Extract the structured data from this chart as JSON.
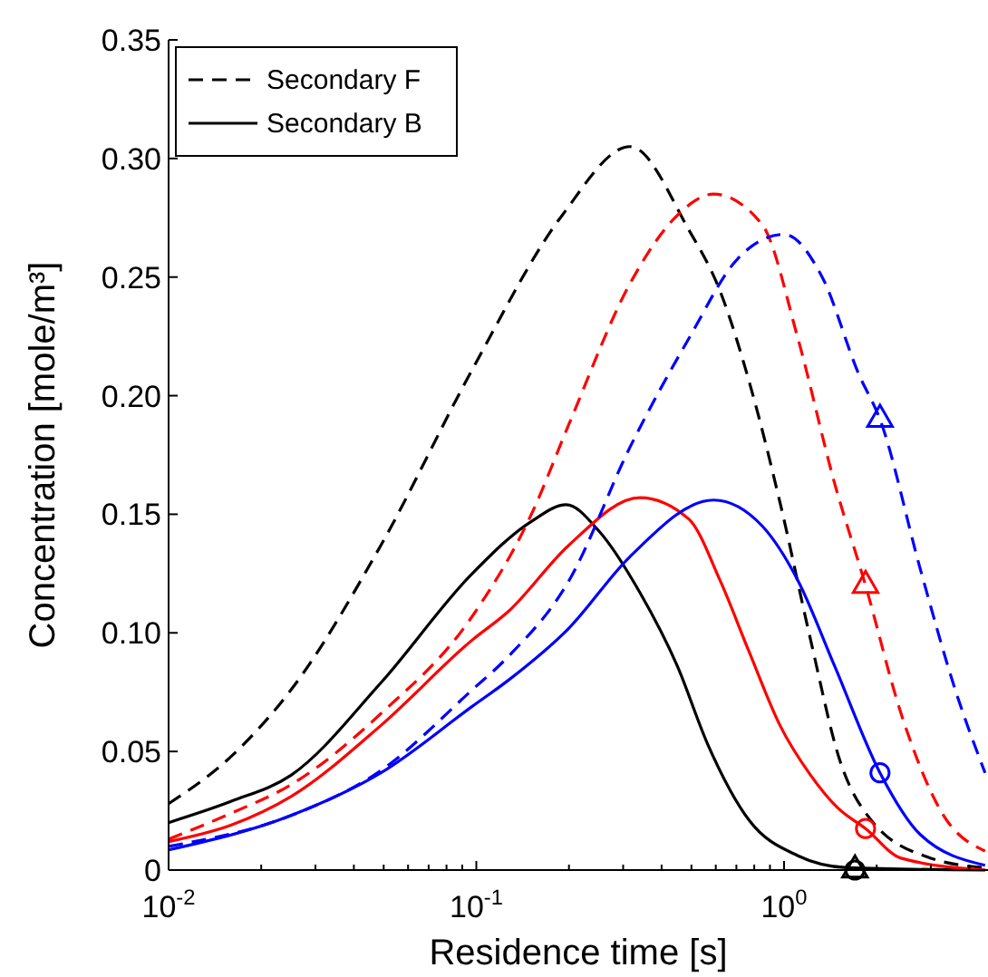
{
  "chart_data": {
    "type": "line",
    "xlabel": "Residence time [s]",
    "ylabel": "Concentration [mole/m³]",
    "log": "x",
    "xlim": [
      0.01,
      4.6
    ],
    "ylim": [
      0,
      0.35
    ],
    "xticks": [
      {
        "value": 0.01,
        "label": "10$^{-2}$"
      },
      {
        "value": 0.02,
        "label": null
      },
      {
        "value": 0.03,
        "label": null
      },
      {
        "value": 0.04,
        "label": null
      },
      {
        "value": 0.05,
        "label": null
      },
      {
        "value": 0.06,
        "label": null
      },
      {
        "value": 0.07,
        "label": null
      },
      {
        "value": 0.08,
        "label": null
      },
      {
        "value": 0.09,
        "label": null
      },
      {
        "value": 0.1,
        "label": "10$^{-1}$"
      },
      {
        "value": 0.2,
        "label": null
      },
      {
        "value": 0.3,
        "label": null
      },
      {
        "value": 0.4,
        "label": null
      },
      {
        "value": 0.5,
        "label": null
      },
      {
        "value": 0.6,
        "label": null
      },
      {
        "value": 0.7,
        "label": null
      },
      {
        "value": 0.8,
        "label": null
      },
      {
        "value": 0.9,
        "label": null
      },
      {
        "value": 1,
        "label": "10$^{0}$"
      },
      {
        "value": 2,
        "label": null
      },
      {
        "value": 3,
        "label": null
      },
      {
        "value": 4,
        "label": null
      }
    ],
    "yticks": [
      {
        "value": 0,
        "label": "0"
      },
      {
        "value": 0.05,
        "label": "0.05"
      },
      {
        "value": 0.1,
        "label": "0.10"
      },
      {
        "value": 0.15,
        "label": "0.15"
      },
      {
        "value": 0.2,
        "label": "0.20"
      },
      {
        "value": 0.25,
        "label": "0.25"
      },
      {
        "value": 0.3,
        "label": "0.30"
      },
      {
        "value": 0.35,
        "label": "0.35"
      }
    ],
    "grid": false,
    "legend": "top left",
    "series": [
      {
        "name": "Secondary F",
        "color": "#000000",
        "line_style": "dashed",
        "x": [
          0.01,
          0.016,
          0.025,
          0.049,
          0.097,
          0.19,
          0.316,
          0.49,
          0.62,
          0.77,
          0.97,
          1.22,
          1.52,
          1.92,
          3.0,
          4.5
        ],
        "values": [
          0.028,
          0.048,
          0.076,
          0.137,
          0.211,
          0.276,
          0.305,
          0.27,
          0.244,
          0.206,
          0.155,
          0.097,
          0.046,
          0.021,
          0.005,
          0.001
        ]
      },
      {
        "name": "Secondary B",
        "color": "#000000",
        "line_style": "solid",
        "x": [
          0.01,
          0.016,
          0.025,
          0.049,
          0.097,
          0.151,
          0.196,
          0.25,
          0.34,
          0.45,
          0.565,
          0.77,
          1.11,
          1.6,
          4.5
        ],
        "values": [
          0.02,
          0.029,
          0.04,
          0.079,
          0.125,
          0.147,
          0.154,
          0.143,
          0.117,
          0.086,
          0.053,
          0.021,
          0.006,
          0.001,
          0
        ]
      },
      {
        "color": "#ff0000",
        "line_style": "dashed",
        "x": [
          0.01,
          0.016,
          0.025,
          0.049,
          0.097,
          0.151,
          0.2,
          0.315,
          0.45,
          0.59,
          0.85,
          1.11,
          1.46,
          1.84,
          2.4,
          3.3,
          4.5
        ],
        "values": [
          0.013,
          0.024,
          0.036,
          0.066,
          0.107,
          0.15,
          0.188,
          0.247,
          0.276,
          0.285,
          0.272,
          0.224,
          0.163,
          0.12,
          0.066,
          0.023,
          0.008
        ]
      },
      {
        "color": "#ff0000",
        "line_style": "solid",
        "x": [
          0.01,
          0.016,
          0.025,
          0.049,
          0.097,
          0.127,
          0.2,
          0.34,
          0.49,
          0.62,
          0.77,
          0.97,
          1.22,
          1.5,
          1.84,
          2.4,
          4.5
        ],
        "values": [
          0.012,
          0.019,
          0.031,
          0.061,
          0.097,
          0.109,
          0.137,
          0.157,
          0.148,
          0.122,
          0.092,
          0.061,
          0.04,
          0.026,
          0.0175,
          0.005,
          0
        ]
      },
      {
        "color": "#0000ff",
        "line_style": "dashed",
        "x": [
          0.01,
          0.025,
          0.049,
          0.097,
          0.127,
          0.2,
          0.315,
          0.49,
          0.71,
          1.0,
          1.33,
          1.75,
          2.05,
          2.77,
          3.6,
          4.5
        ],
        "values": [
          0.01,
          0.023,
          0.042,
          0.076,
          0.09,
          0.122,
          0.178,
          0.224,
          0.258,
          0.268,
          0.25,
          0.209,
          0.19,
          0.127,
          0.076,
          0.041
        ]
      },
      {
        "color": "#0000ff",
        "line_style": "solid",
        "x": [
          0.01,
          0.025,
          0.049,
          0.097,
          0.127,
          0.2,
          0.315,
          0.59,
          0.85,
          1.11,
          1.46,
          2.05,
          2.77,
          4.5
        ],
        "values": [
          0.0085,
          0.023,
          0.041,
          0.069,
          0.08,
          0.102,
          0.132,
          0.156,
          0.145,
          0.122,
          0.086,
          0.041,
          0.015,
          0.002
        ]
      },
      {
        "type": "scatter",
        "marker": "circle",
        "x": [
          1.7,
          1.84,
          2.05
        ],
        "values": [
          0,
          0.0175,
          0.041
        ],
        "colors": [
          "#000000",
          "#ff0000",
          "#0000ff"
        ]
      },
      {
        "type": "scatter",
        "marker": "triangle",
        "x": [
          1.7,
          1.84,
          2.05
        ],
        "values": [
          0,
          0.12,
          0.19
        ],
        "colors": [
          "#000000",
          "#ff0000",
          "#0000ff"
        ]
      }
    ]
  }
}
